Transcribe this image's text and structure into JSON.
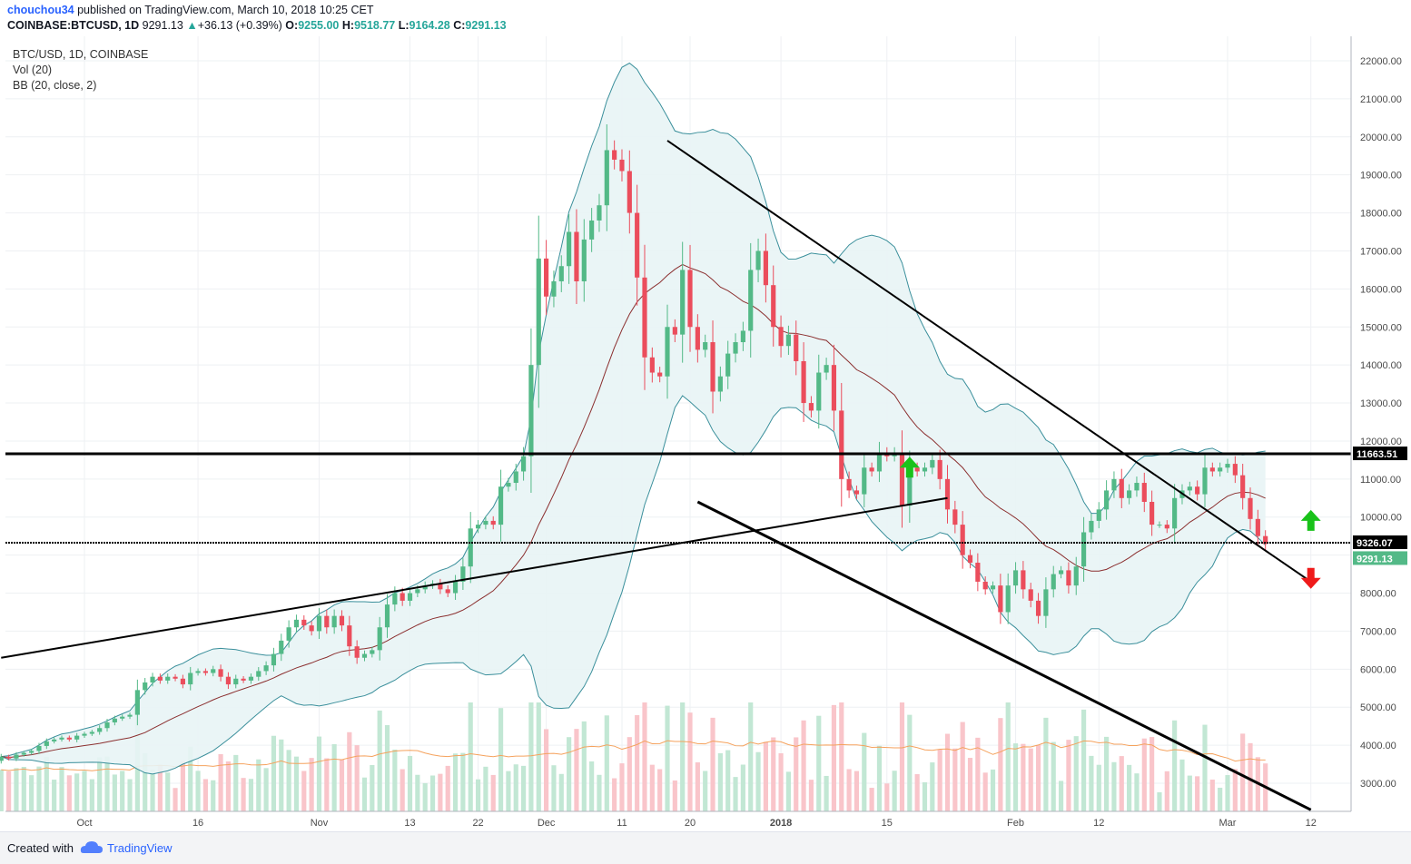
{
  "header": {
    "user": "chouchou34",
    "published_text": "published on TradingView.com, March 10, 2018 10:25 CET",
    "symbol": "COINBASE:BTCUSD, 1D",
    "last": "9291.13",
    "change": "+36.13 (+0.39%)",
    "open_label": "O:",
    "open": "9255.00",
    "high_label": "H:",
    "high": "9518.77",
    "low_label": "L:",
    "low": "9164.28",
    "close_label": "C:",
    "close": "9291.13"
  },
  "legend": {
    "line1": "BTC/USD, 1D, COINBASE",
    "line2": "Vol (20)",
    "line3": "BB (20, close, 2)"
  },
  "footer": {
    "created_with": "Created with",
    "brand": "TradingView"
  },
  "colors": {
    "bull": "#53b987",
    "bear": "#eb4d5c",
    "bull_vol": "#c2e7d4",
    "bear_vol": "#f9c5ca",
    "bb_band": "#3a8f9b",
    "bb_basis": "#8b2f2f",
    "bb_fill": "#e8f4f5",
    "vol_ma": "#f5a25d",
    "arrow_up": "#19c21a",
    "arrow_down": "#ef1a1a"
  },
  "chart_data": {
    "type": "candlestick",
    "symbol": "BTC/USD",
    "y_range": [
      2300,
      22500
    ],
    "y_ticks": [
      "22000.00",
      "21000.00",
      "20000.00",
      "19000.00",
      "18000.00",
      "17000.00",
      "16000.00",
      "15000.00",
      "14000.00",
      "13000.00",
      "12000.00",
      "11000.00",
      "10000.00",
      "9000.00",
      "8000.00",
      "7000.00",
      "6000.00",
      "5000.00",
      "4000.00",
      "3000.00"
    ],
    "x_ticks": [
      {
        "label": "Oct",
        "date": "2017-10-01",
        "bold": false
      },
      {
        "label": "16",
        "date": "2017-10-16",
        "bold": false
      },
      {
        "label": "Nov",
        "date": "2017-11-01",
        "bold": false
      },
      {
        "label": "13",
        "date": "2017-11-13",
        "bold": false
      },
      {
        "label": "22",
        "date": "2017-11-22",
        "bold": false
      },
      {
        "label": "Dec",
        "date": "2017-12-01",
        "bold": false
      },
      {
        "label": "11",
        "date": "2017-12-11",
        "bold": false
      },
      {
        "label": "20",
        "date": "2017-12-20",
        "bold": false
      },
      {
        "label": "2018",
        "date": "2018-01-01",
        "bold": true
      },
      {
        "label": "15",
        "date": "2018-01-15",
        "bold": false
      },
      {
        "label": "Feb",
        "date": "2018-02-01",
        "bold": false
      },
      {
        "label": "12",
        "date": "2018-02-12",
        "bold": false
      },
      {
        "label": "Mar",
        "date": "2018-03-01",
        "bold": false
      },
      {
        "label": "12",
        "date": "2018-03-12",
        "bold": false
      }
    ],
    "first_date": "2017-09-20",
    "close_prices": [
      3700,
      3650,
      3750,
      3800,
      3850,
      3980,
      4100,
      4150,
      4200,
      4150,
      4250,
      4300,
      4350,
      4450,
      4600,
      4700,
      4750,
      4800,
      5450,
      5650,
      5800,
      5700,
      5800,
      5750,
      5600,
      5900,
      5950,
      5900,
      6000,
      5800,
      5600,
      5750,
      5700,
      5800,
      5950,
      6100,
      6400,
      6750,
      7100,
      7300,
      7150,
      7000,
      7400,
      7100,
      7400,
      7150,
      6600,
      6300,
      6400,
      6500,
      7100,
      7700,
      8000,
      7800,
      8000,
      8100,
      8200,
      8250,
      8100,
      8000,
      8300,
      8700,
      9700,
      9800,
      9900,
      9800,
      10800,
      10900,
      11200,
      11600,
      14000,
      16800,
      15800,
      16200,
      16600,
      17500,
      16200,
      17300,
      17800,
      18200,
      19650,
      19400,
      19100,
      18000,
      16300,
      14200,
      13800,
      13700,
      15000,
      14800,
      16500,
      15000,
      14400,
      14600,
      13300,
      13700,
      14300,
      14600,
      14900,
      16500,
      17000,
      16100,
      15000,
      14500,
      14800,
      14100,
      13000,
      12800,
      13800,
      14000,
      12800,
      11000,
      10700,
      10600,
      11300,
      11200,
      11700,
      11600,
      11700,
      10300,
      11300,
      11200,
      11300,
      11500,
      11000,
      10200,
      9800,
      9000,
      8800,
      8300,
      8100,
      8200,
      7500,
      8200,
      8600,
      8100,
      7800,
      7400,
      8100,
      8500,
      8600,
      8200,
      8700,
      9600,
      9900,
      10200,
      10700,
      11000,
      10500,
      10700,
      10900,
      10400,
      9800,
      9800,
      9700,
      10500,
      10700,
      10800,
      10600,
      11300,
      11200,
      11300,
      11400,
      11100,
      10500,
      9950,
      9500,
      9291
    ],
    "bb_upper_approx": [
      4800,
      5900,
      8000,
      10000,
      11800,
      14000,
      19000,
      21500,
      19800,
      17200,
      17000,
      12500,
      11900,
      11800,
      11800
    ],
    "resistance_levels": [
      11663.51,
      9326.07
    ],
    "last_price": 9291.13,
    "price_labels": [
      "11663.51",
      "9326.07",
      "9291.13"
    ],
    "trendlines": [
      {
        "name": "descending-resistance",
        "from": [
          "2017-12-17",
          19900
        ],
        "to": [
          "2018-03-12",
          8300
        ]
      },
      {
        "name": "ascending-support",
        "from": [
          "2017-09-20",
          6300
        ],
        "to": [
          "2018-01-23",
          10500
        ]
      },
      {
        "name": "lower-channel",
        "from": [
          "2017-12-21",
          10400
        ],
        "to": [
          "2018-03-12",
          2300
        ]
      }
    ],
    "annotations": [
      {
        "name": "arrow-up-jan",
        "type": "up-arrow",
        "date": "2018-01-18",
        "price": 11300
      },
      {
        "name": "arrow-up-right",
        "type": "up-arrow",
        "date": "2018-03-12",
        "price": 9900
      },
      {
        "name": "arrow-down-right",
        "type": "down-arrow",
        "date": "2018-03-12",
        "price": 8400
      }
    ]
  }
}
